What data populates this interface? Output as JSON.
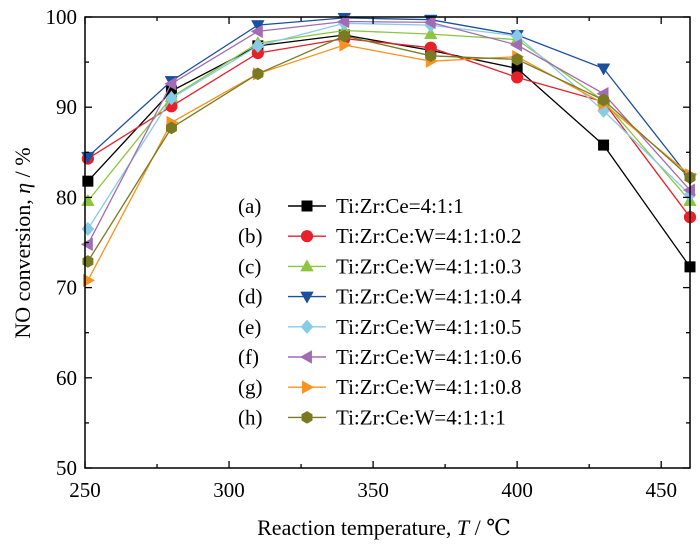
{
  "chart_data": {
    "type": "line",
    "xlabel": "Reaction temperature, T / ℃",
    "xlabel_parts": [
      "Reaction temperature, ",
      "T",
      " / ℃"
    ],
    "ylabel": "NO conversion, η / %",
    "ylabel_parts": [
      "NO conversion, ",
      "η",
      " / %"
    ],
    "xlim": [
      250,
      460
    ],
    "ylim": [
      50,
      100
    ],
    "xticks": [
      250,
      300,
      350,
      400,
      450
    ],
    "yticks": [
      50,
      60,
      70,
      80,
      90,
      100
    ],
    "grid": false,
    "legend_position": "lower-center",
    "x": [
      251,
      280,
      310,
      340,
      370,
      400,
      430,
      460
    ],
    "series": [
      {
        "tag": "(a)",
        "name": "Ti:Zr:Ce=4:1:1",
        "color": "#000000",
        "marker": "square",
        "values": [
          81.8,
          91.8,
          96.8,
          98.0,
          96.3,
          94.3,
          85.8,
          72.3
        ]
      },
      {
        "tag": "(b)",
        "name": "Ti:Zr:Ce:W=4:1:1:0.2",
        "color": "#e8202a",
        "marker": "circle",
        "values": [
          84.3,
          90.1,
          96.0,
          97.6,
          96.6,
          93.3,
          90.6,
          77.8
        ]
      },
      {
        "tag": "(c)",
        "name": "Ti:Zr:Ce:W=4:1:1:0.3",
        "color": "#8cc63f",
        "marker": "triangle-up",
        "values": [
          79.6,
          91.1,
          97.1,
          98.5,
          98.1,
          97.5,
          90.7,
          79.6
        ]
      },
      {
        "tag": "(d)",
        "name": "Ti:Zr:Ce:W=4:1:1:0.4",
        "color": "#1b4fa0",
        "marker": "triangle-down",
        "values": [
          84.5,
          92.9,
          99.1,
          99.9,
          99.7,
          98.0,
          94.3,
          82.1
        ]
      },
      {
        "tag": "(e)",
        "name": "Ti:Zr:Ce:W=4:1:1:0.5",
        "color": "#87cbe6",
        "marker": "diamond",
        "values": [
          76.5,
          91.0,
          96.8,
          99.3,
          99.1,
          97.9,
          89.6,
          80.3
        ]
      },
      {
        "tag": "(f)",
        "name": "Ti:Zr:Ce:W=4:1:1:0.6",
        "color": "#a36bb4",
        "marker": "triangle-left",
        "values": [
          74.8,
          92.6,
          98.4,
          99.5,
          99.4,
          96.9,
          91.5,
          80.8
        ]
      },
      {
        "tag": "(g)",
        "name": "Ti:Zr:Ce:W=4:1:1:0.8",
        "color": "#f7931e",
        "marker": "triangle-right",
        "values": [
          70.8,
          88.3,
          93.7,
          96.9,
          95.1,
          95.6,
          90.4,
          82.5
        ]
      },
      {
        "tag": "(h)",
        "name": "Ti:Zr:Ce:W=4:1:1:1",
        "color": "#7a7a22",
        "marker": "hexagon",
        "values": [
          72.9,
          87.7,
          93.7,
          97.9,
          95.7,
          95.3,
          90.8,
          82.2
        ]
      }
    ]
  }
}
